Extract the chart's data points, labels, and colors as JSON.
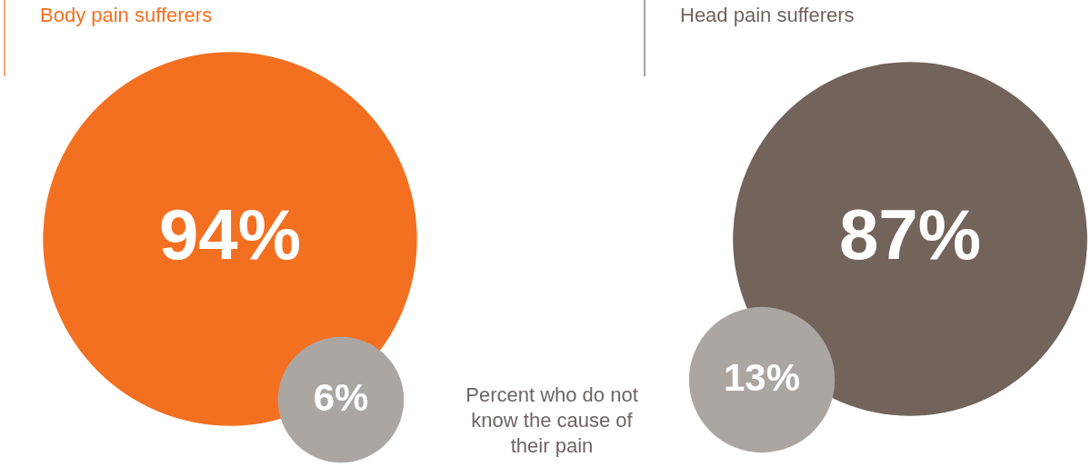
{
  "chart_data": [
    {
      "type": "other",
      "title": "Body pain sufferers",
      "values": [
        94,
        6
      ],
      "value_labels": [
        "94%",
        "6%"
      ],
      "colors": [
        "#f37021",
        "#aca6a3"
      ],
      "annotations": [
        "Percent who do not know the cause of their pain"
      ]
    },
    {
      "type": "other",
      "title": "Head pain sufferers",
      "values": [
        87,
        13
      ],
      "value_labels": [
        "87%",
        "13%"
      ],
      "colors": [
        "#72635b",
        "#aca6a3"
      ]
    }
  ]
}
